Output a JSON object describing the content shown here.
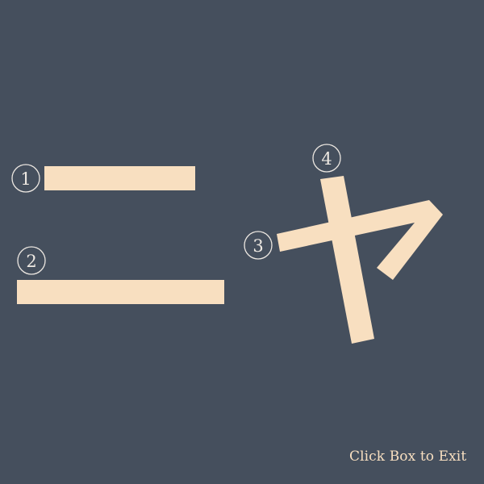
{
  "colors": {
    "background": "#454f5d",
    "stroke": "#f8dfc0",
    "marker": "#ede8e2",
    "hint_text": "#f8dfc0"
  },
  "strokes": [
    {
      "order": "1"
    },
    {
      "order": "2"
    },
    {
      "order": "3"
    },
    {
      "order": "4"
    }
  ],
  "exit_hint": "Click Box to Exit"
}
